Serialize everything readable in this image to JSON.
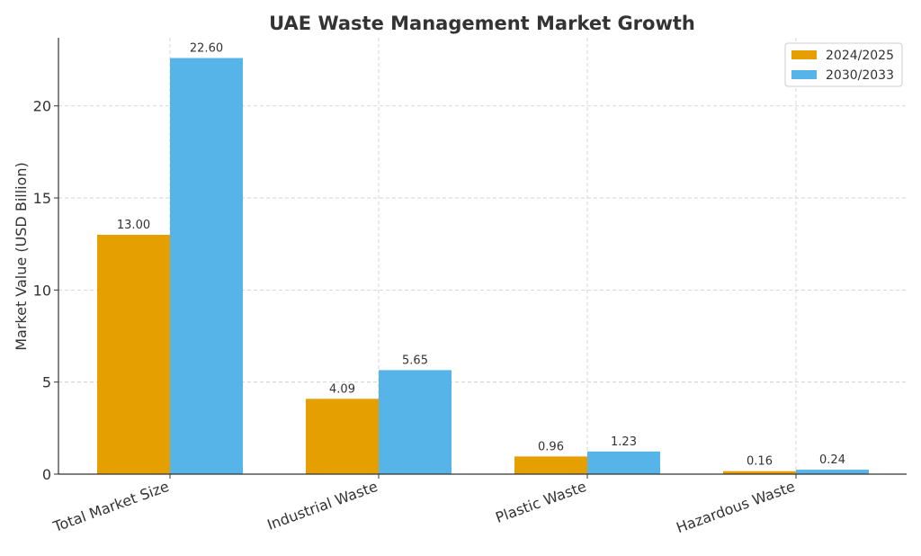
{
  "chart_data": {
    "type": "bar",
    "title": "UAE Waste Management Market Growth",
    "xlabel": "",
    "ylabel": "Market Value (USD Billion)",
    "categories": [
      "Total Market Size",
      "Industrial Waste",
      "Plastic Waste",
      "Hazardous Waste"
    ],
    "series": [
      {
        "name": "2024/2025",
        "values": [
          13.0,
          4.09,
          0.96,
          0.16
        ],
        "color": "#E69F00"
      },
      {
        "name": "2030/2033",
        "values": [
          22.6,
          5.65,
          1.23,
          0.24
        ],
        "color": "#56B4E9"
      }
    ],
    "ylim": [
      0,
      23.7
    ],
    "yticks": [
      0,
      5,
      10,
      15,
      20
    ],
    "grid": true,
    "legend": "top-right",
    "data_labels": true
  }
}
